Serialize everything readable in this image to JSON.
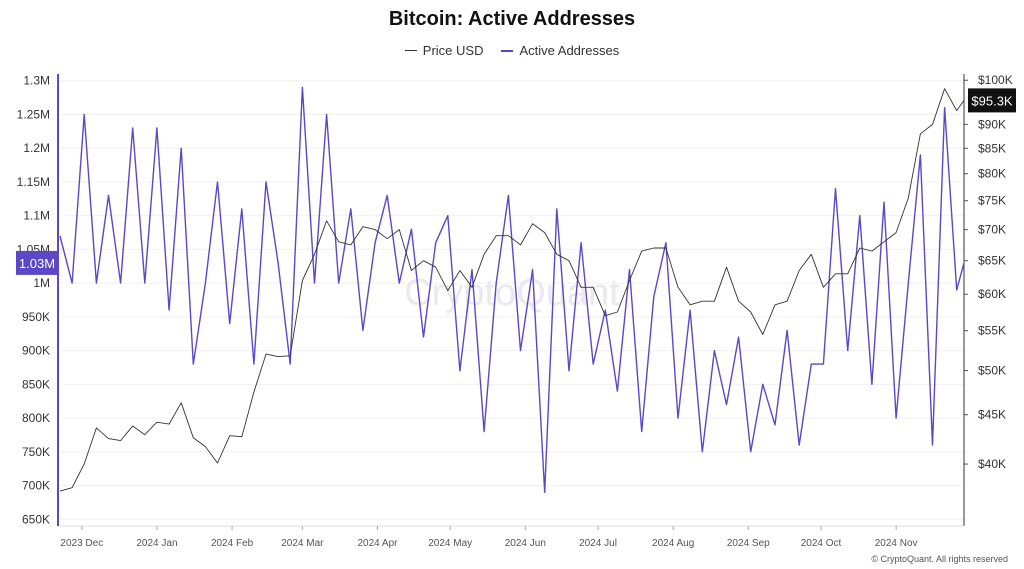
{
  "title": "Bitcoin: Active Addresses",
  "legend": {
    "price_label": "Price USD",
    "addresses_label": "Active Addresses"
  },
  "footer": "© CryptoQuant. All rights reserved",
  "watermark": "CryptoQuant",
  "colors": {
    "addresses": "#5b47c8",
    "price": "#333333",
    "badge_left": "#5b47c8",
    "badge_right": "#111111"
  },
  "chart_data": {
    "type": "line",
    "title": "Bitcoin: Active Addresses",
    "x_tick_labels": [
      "2023 Dec",
      "2024 Jan",
      "2024 Feb",
      "2024 Mar",
      "2024 Apr",
      "2024 May",
      "2024 Jun",
      "2024 Jul",
      "2024 Aug",
      "2024 Sep",
      "2024 Oct",
      "2024 Nov"
    ],
    "x_range": [
      "2023-11-22",
      "2024-11-29"
    ],
    "left_axis": {
      "label": "Active Addresses",
      "ticks": [
        "650K",
        "700K",
        "750K",
        "800K",
        "850K",
        "900K",
        "950K",
        "1M",
        "1.05M",
        "1.1M",
        "1.15M",
        "1.2M",
        "1.25M",
        "1.3M"
      ],
      "tick_values": [
        650000,
        700000,
        750000,
        800000,
        850000,
        900000,
        950000,
        1000000,
        1050000,
        1100000,
        1150000,
        1200000,
        1250000,
        1300000
      ],
      "range": [
        640000,
        1310000
      ]
    },
    "right_axis": {
      "label": "Price USD",
      "scale": "log",
      "ticks": [
        "$40K",
        "$45K",
        "$50K",
        "$55K",
        "$60K",
        "$65K",
        "$70K",
        "$75K",
        "$80K",
        "$85K",
        "$90K",
        "$100K"
      ],
      "tick_values": [
        40000,
        45000,
        50000,
        55000,
        60000,
        65000,
        70000,
        75000,
        80000,
        85000,
        90000,
        100000
      ],
      "range": [
        34500,
        101500
      ]
    },
    "current_values": {
      "addresses_badge": "1.03M",
      "price_badge": "$95.3K"
    },
    "series": [
      {
        "name": "Active Addresses",
        "axis": "left",
        "x": [
          "2023-11-22",
          "2023-11-27",
          "2023-12-02",
          "2023-12-07",
          "2023-12-12",
          "2023-12-17",
          "2023-12-22",
          "2023-12-27",
          "2024-01-01",
          "2024-01-06",
          "2024-01-11",
          "2024-01-16",
          "2024-01-21",
          "2024-01-26",
          "2024-01-31",
          "2024-02-05",
          "2024-02-10",
          "2024-02-15",
          "2024-02-20",
          "2024-02-25",
          "2024-03-01",
          "2024-03-06",
          "2024-03-11",
          "2024-03-16",
          "2024-03-21",
          "2024-03-26",
          "2024-03-31",
          "2024-04-05",
          "2024-04-10",
          "2024-04-15",
          "2024-04-20",
          "2024-04-25",
          "2024-04-30",
          "2024-05-05",
          "2024-05-10",
          "2024-05-15",
          "2024-05-20",
          "2024-05-25",
          "2024-05-30",
          "2024-06-04",
          "2024-06-09",
          "2024-06-14",
          "2024-06-19",
          "2024-06-24",
          "2024-06-29",
          "2024-07-04",
          "2024-07-09",
          "2024-07-14",
          "2024-07-19",
          "2024-07-24",
          "2024-07-29",
          "2024-08-03",
          "2024-08-08",
          "2024-08-13",
          "2024-08-18",
          "2024-08-23",
          "2024-08-28",
          "2024-09-02",
          "2024-09-07",
          "2024-09-12",
          "2024-09-17",
          "2024-09-22",
          "2024-09-27",
          "2024-10-02",
          "2024-10-07",
          "2024-10-12",
          "2024-10-17",
          "2024-10-22",
          "2024-10-27",
          "2024-11-01",
          "2024-11-06",
          "2024-11-11",
          "2024-11-16",
          "2024-11-21",
          "2024-11-26",
          "2024-11-29"
        ],
        "values": [
          1070000,
          1000000,
          1250000,
          1000000,
          1130000,
          1000000,
          1230000,
          1000000,
          1230000,
          960000,
          1200000,
          880000,
          1000000,
          1150000,
          940000,
          1110000,
          880000,
          1150000,
          1030000,
          880000,
          1290000,
          1000000,
          1250000,
          1000000,
          1110000,
          930000,
          1060000,
          1130000,
          1000000,
          1080000,
          920000,
          1060000,
          1100000,
          870000,
          1020000,
          780000,
          1000000,
          1130000,
          900000,
          1020000,
          690000,
          1110000,
          870000,
          1060000,
          880000,
          960000,
          840000,
          1020000,
          780000,
          980000,
          1060000,
          800000,
          960000,
          750000,
          900000,
          820000,
          920000,
          750000,
          850000,
          790000,
          930000,
          760000,
          880000,
          880000,
          1140000,
          900000,
          1100000,
          850000,
          1120000,
          800000,
          1000000,
          1190000,
          760000,
          1260000,
          990000,
          1030000
        ]
      },
      {
        "name": "Price USD",
        "axis": "right",
        "x": [
          "2023-11-22",
          "2023-11-27",
          "2023-12-02",
          "2023-12-07",
          "2023-12-12",
          "2023-12-17",
          "2023-12-22",
          "2023-12-27",
          "2024-01-01",
          "2024-01-06",
          "2024-01-11",
          "2024-01-16",
          "2024-01-21",
          "2024-01-26",
          "2024-01-31",
          "2024-02-05",
          "2024-02-10",
          "2024-02-15",
          "2024-02-20",
          "2024-02-25",
          "2024-03-01",
          "2024-03-06",
          "2024-03-11",
          "2024-03-16",
          "2024-03-21",
          "2024-03-26",
          "2024-03-31",
          "2024-04-05",
          "2024-04-10",
          "2024-04-15",
          "2024-04-20",
          "2024-04-25",
          "2024-04-30",
          "2024-05-05",
          "2024-05-10",
          "2024-05-15",
          "2024-05-20",
          "2024-05-25",
          "2024-05-30",
          "2024-06-04",
          "2024-06-09",
          "2024-06-14",
          "2024-06-19",
          "2024-06-24",
          "2024-06-29",
          "2024-07-04",
          "2024-07-09",
          "2024-07-14",
          "2024-07-19",
          "2024-07-24",
          "2024-07-29",
          "2024-08-03",
          "2024-08-08",
          "2024-08-13",
          "2024-08-18",
          "2024-08-23",
          "2024-08-28",
          "2024-09-02",
          "2024-09-07",
          "2024-09-12",
          "2024-09-17",
          "2024-09-22",
          "2024-09-27",
          "2024-10-02",
          "2024-10-07",
          "2024-10-12",
          "2024-10-17",
          "2024-10-22",
          "2024-10-27",
          "2024-11-01",
          "2024-11-06",
          "2024-11-11",
          "2024-11-16",
          "2024-11-21",
          "2024-11-26",
          "2024-11-29"
        ],
        "values": [
          37500,
          37800,
          40000,
          43600,
          42500,
          42300,
          43800,
          42900,
          44200,
          44000,
          46300,
          42600,
          41700,
          40100,
          42800,
          42700,
          47500,
          52000,
          51700,
          51800,
          62000,
          66000,
          71500,
          68000,
          67500,
          70500,
          70000,
          68500,
          70000,
          63500,
          65000,
          64000,
          60500,
          63500,
          61000,
          66000,
          69000,
          69000,
          67500,
          71000,
          69500,
          66000,
          65000,
          61000,
          61000,
          57000,
          57500,
          62000,
          66500,
          67000,
          67000,
          61000,
          58500,
          59000,
          59000,
          64000,
          59000,
          57500,
          54500,
          58500,
          59000,
          63500,
          66000,
          61000,
          63000,
          63000,
          67000,
          66500,
          68000,
          69500,
          75500,
          88000,
          90000,
          98000,
          93000,
          95300
        ]
      }
    ]
  }
}
